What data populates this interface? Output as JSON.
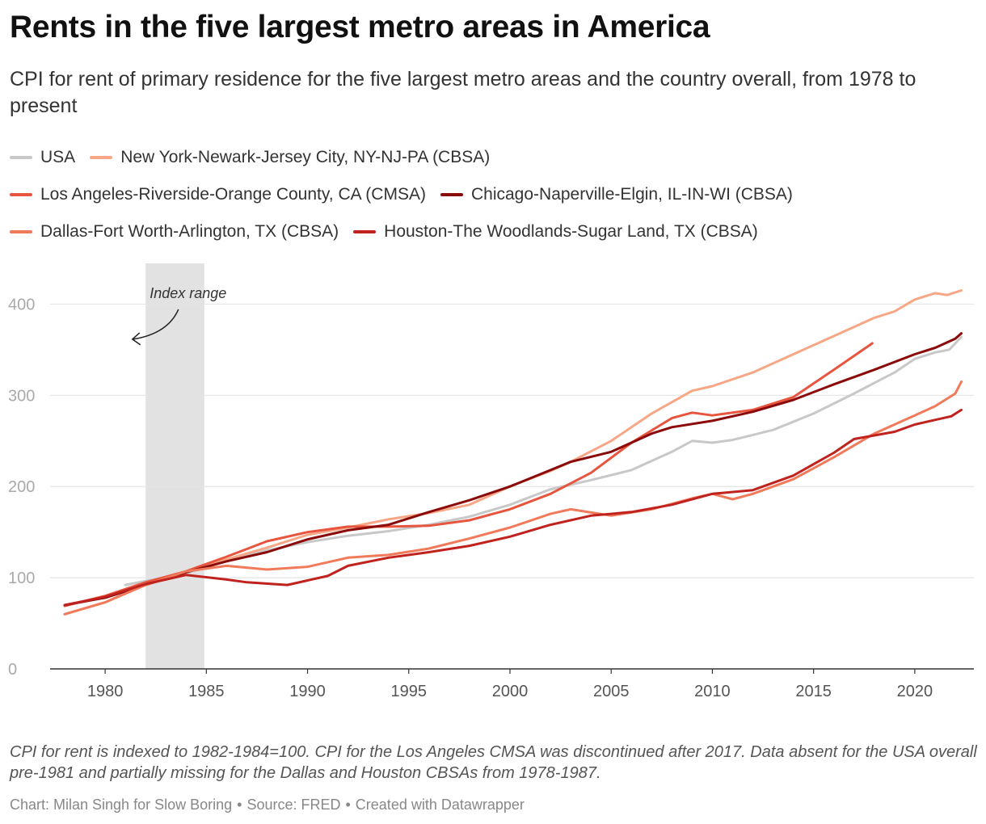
{
  "header": {
    "title": "Rents in the five largest metro areas in America",
    "subtitle": "CPI for rent of primary residence for the five largest metro areas and the country overall, from 1978 to present"
  },
  "legend": {
    "rows": [
      [
        {
          "name": "USA",
          "color": "#c8c8c8"
        },
        {
          "name": "New York-Newark-Jersey City, NY-NJ-PA (CBSA)",
          "color": "#f7a785"
        }
      ],
      [
        {
          "name": "Los Angeles-Riverside-Orange County, CA (CMSA)",
          "color": "#e8553f"
        },
        {
          "name": "Chicago-Naperville-Elgin, IL-IN-WI (CBSA)",
          "color": "#8b0a0a"
        }
      ],
      [
        {
          "name": "Dallas-Fort Worth-Arlington, TX (CBSA)",
          "color": "#f07a5a"
        },
        {
          "name": "Houston-The Woodlands-Sugar Land, TX (CBSA)",
          "color": "#c0221e"
        }
      ]
    ]
  },
  "chart_data": {
    "type": "line",
    "x_range": [
      1978,
      2022.5
    ],
    "ylim": [
      0,
      450
    ],
    "yticks": [
      0,
      100,
      200,
      300,
      400
    ],
    "xticks": [
      1980,
      1985,
      1990,
      1995,
      2000,
      2005,
      2010,
      2015,
      2020
    ],
    "grid": true,
    "legend_position": "top",
    "shaded_range": {
      "x": [
        1982,
        1984.9
      ],
      "color": "#e2e2e2"
    },
    "annotation": {
      "text": "Index range",
      "x": 1984.1,
      "y": 412
    },
    "series": [
      {
        "name": "USA",
        "color": "#c8c8c8",
        "points": [
          [
            1981,
            92
          ],
          [
            1984,
            105
          ],
          [
            1986,
            118
          ],
          [
            1988,
            130
          ],
          [
            1990,
            139
          ],
          [
            1992,
            146
          ],
          [
            1994,
            151
          ],
          [
            1996,
            158
          ],
          [
            1998,
            167
          ],
          [
            2000,
            180
          ],
          [
            2002,
            197
          ],
          [
            2004,
            207
          ],
          [
            2006,
            218
          ],
          [
            2008,
            238
          ],
          [
            2009,
            250
          ],
          [
            2010,
            248
          ],
          [
            2011,
            251
          ],
          [
            2013,
            262
          ],
          [
            2015,
            280
          ],
          [
            2017,
            302
          ],
          [
            2019,
            325
          ],
          [
            2020,
            340
          ],
          [
            2021,
            347
          ],
          [
            2021.7,
            350
          ],
          [
            2022.3,
            364
          ]
        ]
      },
      {
        "name": "New York-Newark-Jersey City, NY-NJ-PA (CBSA)",
        "color": "#f7a785",
        "points": [
          [
            1978,
            60
          ],
          [
            1980,
            73
          ],
          [
            1982,
            93
          ],
          [
            1984,
            107
          ],
          [
            1986,
            120
          ],
          [
            1988,
            133
          ],
          [
            1990,
            147
          ],
          [
            1992,
            155
          ],
          [
            1994,
            164
          ],
          [
            1996,
            171
          ],
          [
            1998,
            180
          ],
          [
            2000,
            200
          ],
          [
            2002,
            217
          ],
          [
            2003,
            227
          ],
          [
            2005,
            250
          ],
          [
            2007,
            280
          ],
          [
            2009,
            305
          ],
          [
            2010,
            310
          ],
          [
            2012,
            325
          ],
          [
            2014,
            345
          ],
          [
            2016,
            365
          ],
          [
            2018,
            385
          ],
          [
            2019,
            392
          ],
          [
            2020,
            405
          ],
          [
            2021,
            412
          ],
          [
            2021.6,
            410
          ],
          [
            2022.3,
            415
          ]
        ]
      },
      {
        "name": "Los Angeles-Riverside-Orange County, CA (CMSA)",
        "color": "#e8553f",
        "points": [
          [
            1978,
            69
          ],
          [
            1980,
            80
          ],
          [
            1982,
            95
          ],
          [
            1984,
            107
          ],
          [
            1986,
            123
          ],
          [
            1988,
            140
          ],
          [
            1990,
            150
          ],
          [
            1992,
            156
          ],
          [
            1994,
            156
          ],
          [
            1996,
            157
          ],
          [
            1998,
            163
          ],
          [
            2000,
            175
          ],
          [
            2002,
            192
          ],
          [
            2004,
            215
          ],
          [
            2006,
            248
          ],
          [
            2008,
            275
          ],
          [
            2009,
            281
          ],
          [
            2010,
            278
          ],
          [
            2012,
            284
          ],
          [
            2014,
            298
          ],
          [
            2016,
            328
          ],
          [
            2017.9,
            357
          ]
        ]
      },
      {
        "name": "Chicago-Naperville-Elgin, IL-IN-WI (CBSA)",
        "color": "#8b0a0a",
        "points": [
          [
            1978,
            70
          ],
          [
            1980,
            78
          ],
          [
            1982,
            92
          ],
          [
            1984,
            106
          ],
          [
            1986,
            118
          ],
          [
            1988,
            128
          ],
          [
            1990,
            142
          ],
          [
            1992,
            152
          ],
          [
            1994,
            158
          ],
          [
            1996,
            172
          ],
          [
            1998,
            185
          ],
          [
            2000,
            200
          ],
          [
            2002,
            218
          ],
          [
            2003,
            227
          ],
          [
            2005,
            238
          ],
          [
            2007,
            258
          ],
          [
            2008,
            265
          ],
          [
            2010,
            272
          ],
          [
            2012,
            282
          ],
          [
            2014,
            295
          ],
          [
            2016,
            312
          ],
          [
            2018,
            328
          ],
          [
            2020,
            345
          ],
          [
            2021,
            352
          ],
          [
            2022,
            362
          ],
          [
            2022.3,
            368
          ]
        ]
      },
      {
        "name": "Dallas-Fort Worth-Arlington, TX (CBSA)",
        "color": "#f07a5a",
        "points": [
          [
            1978,
            60
          ],
          [
            1980,
            73
          ],
          [
            1982,
            92
          ],
          [
            1984,
            107
          ],
          [
            1986,
            113
          ],
          [
            1988,
            109
          ],
          [
            1990,
            112
          ],
          [
            1992,
            122
          ],
          [
            1994,
            125
          ],
          [
            1996,
            132
          ],
          [
            1998,
            143
          ],
          [
            2000,
            155
          ],
          [
            2002,
            170
          ],
          [
            2003,
            175
          ],
          [
            2005,
            168
          ],
          [
            2007,
            175
          ],
          [
            2009,
            187
          ],
          [
            2010,
            192
          ],
          [
            2011,
            186
          ],
          [
            2012,
            192
          ],
          [
            2014,
            208
          ],
          [
            2016,
            232
          ],
          [
            2018,
            258
          ],
          [
            2019,
            268
          ],
          [
            2020,
            278
          ],
          [
            2021,
            288
          ],
          [
            2022,
            302
          ],
          [
            2022.3,
            315
          ]
        ]
      },
      {
        "name": "Houston-The Woodlands-Sugar Land, TX (CBSA)",
        "color": "#c0221e",
        "points": [
          [
            1978,
            70
          ],
          [
            1980,
            79
          ],
          [
            1982,
            93
          ],
          [
            1984,
            103
          ],
          [
            1986,
            98
          ],
          [
            1987,
            95
          ],
          [
            1989,
            92
          ],
          [
            1991,
            102
          ],
          [
            1992,
            113
          ],
          [
            1994,
            122
          ],
          [
            1996,
            128
          ],
          [
            1998,
            135
          ],
          [
            2000,
            145
          ],
          [
            2002,
            158
          ],
          [
            2004,
            168
          ],
          [
            2006,
            172
          ],
          [
            2008,
            180
          ],
          [
            2010,
            192
          ],
          [
            2012,
            196
          ],
          [
            2014,
            212
          ],
          [
            2016,
            237
          ],
          [
            2017,
            252
          ],
          [
            2019,
            260
          ],
          [
            2020,
            268
          ],
          [
            2021,
            273
          ],
          [
            2021.8,
            277
          ],
          [
            2022.3,
            284
          ]
        ]
      }
    ]
  },
  "footer": {
    "notes": "CPI for rent is indexed to 1982-1984=100. CPI for the Los Angeles CMSA was discontinued after 2017. Data absent for the USA overall pre-1981 and partially missing for the Dallas and Houston CBSAs from 1978-1987.",
    "credit_parts": [
      "Chart: Milan Singh for Slow Boring",
      "Source: FRED",
      "Created with Datawrapper"
    ]
  }
}
